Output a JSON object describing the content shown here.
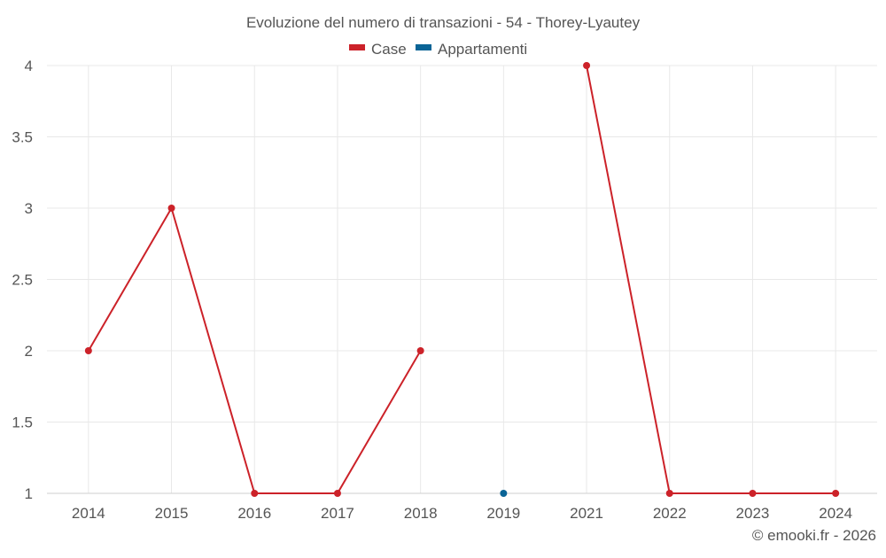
{
  "colors": {
    "case": "#cc2229",
    "appartamenti": "#0a6496",
    "grid": "#e8e8e8",
    "axis": "#cfcfcf",
    "text": "#555555"
  },
  "chart_data": {
    "type": "line",
    "title": "Evoluzione del numero di transazioni - 54 - Thorey-Lyautey",
    "categories": [
      "2014",
      "2015",
      "2016",
      "2017",
      "2018",
      "2019",
      "2021",
      "2022",
      "2023",
      "2024"
    ],
    "series": [
      {
        "name": "Case",
        "color": "#cc2229",
        "values": [
          2,
          3,
          1,
          1,
          2,
          null,
          4,
          1,
          1,
          1
        ]
      },
      {
        "name": "Appartamenti",
        "color": "#0a6496",
        "values": [
          null,
          null,
          null,
          null,
          null,
          1,
          null,
          null,
          null,
          null
        ]
      }
    ],
    "yticks": [
      "1",
      "1.5",
      "2",
      "2.5",
      "3",
      "3.5",
      "4"
    ],
    "ylim": [
      1,
      4
    ],
    "xlabel": "",
    "ylabel": "",
    "grid": true,
    "legend": "top-center"
  },
  "footer": {
    "credit": "© emooki.fr - 2026"
  }
}
